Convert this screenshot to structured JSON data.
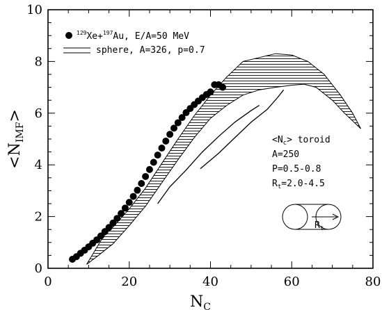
{
  "chart_data": {
    "type": "scatter",
    "xlabel": "N",
    "xlabel_sub": "C",
    "ylabel": "<N",
    "ylabel_sub": "IMF",
    "ylabel_close": ">",
    "xlim": [
      0,
      80
    ],
    "ylim": [
      0,
      10
    ],
    "xticks": [
      "0",
      "20",
      "40",
      "60",
      "80"
    ],
    "yticks": [
      "0",
      "2",
      "4",
      "6",
      "8",
      "10"
    ],
    "legend": {
      "data_sup1": "129",
      "data_mid": "Xe+",
      "data_sup2": "197",
      "data_rest": "Au, E/A=50 MeV",
      "band_label": "sphere, A=326, p=0.7"
    },
    "annotation": {
      "line1": "<N",
      "line1_sub": "c",
      "line1_rest": "> toroid",
      "line2": "A=250",
      "line3": "P=0.5-0.8",
      "line4": "R",
      "line4_sub": "t",
      "line4_rest": "=2.0-4.5",
      "inset_label": "R",
      "inset_sub": "t"
    },
    "series": [
      {
        "points": [
          [
            6.0,
            0.35
          ],
          [
            7.0,
            0.45
          ],
          [
            8.0,
            0.58
          ],
          [
            9.0,
            0.7
          ],
          [
            10.0,
            0.83
          ],
          [
            11.0,
            0.97
          ],
          [
            12.0,
            1.1
          ],
          [
            13.0,
            1.25
          ],
          [
            14.0,
            1.42
          ],
          [
            15.0,
            1.58
          ],
          [
            16.0,
            1.75
          ],
          [
            17.0,
            1.93
          ],
          [
            18.0,
            2.12
          ],
          [
            19.0,
            2.33
          ],
          [
            20.0,
            2.55
          ],
          [
            21.0,
            2.78
          ],
          [
            22.0,
            3.02
          ],
          [
            23.0,
            3.28
          ],
          [
            24.0,
            3.55
          ],
          [
            25.0,
            3.82
          ],
          [
            26.0,
            4.1
          ],
          [
            27.0,
            4.38
          ],
          [
            28.0,
            4.65
          ],
          [
            29.0,
            4.92
          ],
          [
            30.0,
            5.18
          ],
          [
            31.0,
            5.42
          ],
          [
            32.0,
            5.63
          ],
          [
            33.0,
            5.83
          ],
          [
            34.0,
            6.02
          ],
          [
            35.0,
            6.18
          ],
          [
            36.0,
            6.33
          ],
          [
            37.0,
            6.47
          ],
          [
            38.0,
            6.6
          ],
          [
            39.0,
            6.72
          ],
          [
            40.0,
            6.82
          ],
          [
            41.0,
            7.1
          ],
          [
            42.0,
            7.1
          ],
          [
            43.0,
            7.0
          ]
        ]
      }
    ],
    "sphere_band": {
      "upper": [
        [
          13.5,
          1.2
        ],
        [
          16,
          1.6
        ],
        [
          20,
          2.3
        ],
        [
          24,
          3.1
        ],
        [
          28,
          4.05
        ],
        [
          32,
          5.0
        ],
        [
          36,
          5.9
        ],
        [
          40,
          6.7
        ],
        [
          44,
          7.4
        ],
        [
          48,
          8.0
        ],
        [
          52,
          8.15
        ],
        [
          56,
          8.3
        ],
        [
          60,
          8.25
        ],
        [
          64,
          8.0
        ],
        [
          68,
          7.5
        ],
        [
          72,
          6.7
        ],
        [
          75,
          6.0
        ],
        [
          77,
          5.4
        ]
      ],
      "lower": [
        [
          9.5,
          0.15
        ],
        [
          12,
          0.45
        ],
        [
          16,
          0.95
        ],
        [
          20,
          1.65
        ],
        [
          24,
          2.4
        ],
        [
          28,
          3.3
        ],
        [
          32,
          4.2
        ],
        [
          36,
          5.05
        ],
        [
          40,
          5.8
        ],
        [
          44,
          6.3
        ],
        [
          48,
          6.7
        ],
        [
          52,
          6.9
        ],
        [
          56,
          7.0
        ],
        [
          60,
          7.08
        ],
        [
          63,
          7.12
        ],
        [
          66,
          7.0
        ],
        [
          70,
          6.5
        ],
        [
          73,
          6.0
        ],
        [
          77,
          5.4
        ]
      ]
    },
    "toroid_band": {
      "upper": [
        [
          27,
          2.5
        ],
        [
          30,
          3.15
        ],
        [
          34,
          3.8
        ],
        [
          38,
          4.5
        ],
        [
          42,
          5.1
        ],
        [
          46,
          5.65
        ],
        [
          50,
          6.1
        ],
        [
          52,
          6.3
        ]
      ],
      "lower": [
        [
          37.5,
          3.85
        ],
        [
          42,
          4.45
        ],
        [
          46,
          5.05
        ],
        [
          50,
          5.65
        ],
        [
          54,
          6.15
        ],
        [
          56.5,
          6.6
        ],
        [
          58,
          6.9
        ]
      ]
    }
  }
}
